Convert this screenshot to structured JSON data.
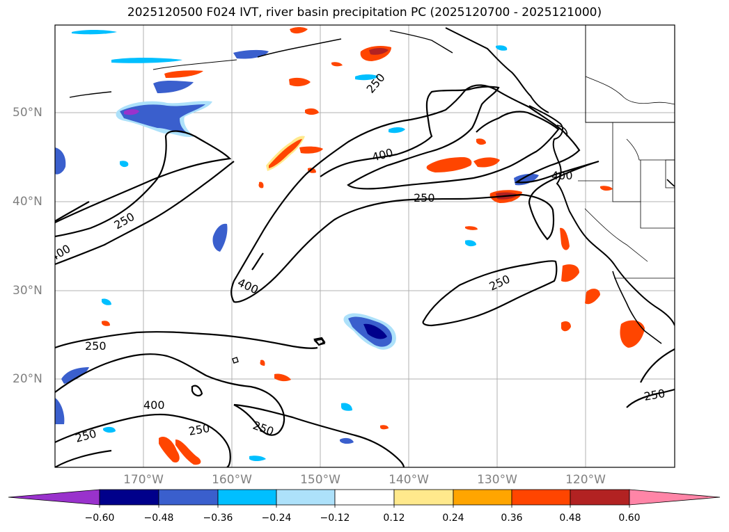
{
  "title": "2025120500 F024 IVT, river basin precipitation PC (2025120700 - 2025121000)",
  "latitude_labels": [
    "50°N",
    "40°N",
    "30°N",
    "20°N"
  ],
  "longitude_labels": [
    "170°W",
    "160°W",
    "150°W",
    "140°W",
    "130°W",
    "120°W"
  ],
  "colorbar": {
    "ticks": [
      "−0.60",
      "−0.48",
      "−0.36",
      "−0.24",
      "−0.12",
      "0.12",
      "0.24",
      "0.36",
      "0.48",
      "0.60"
    ],
    "colors": [
      "#9932CC",
      "#00008B",
      "#3A5FCD",
      "#00BFFF",
      "#ADE1FA",
      "#FFFFFF",
      "#FFE98C",
      "#FFA500",
      "#FF4500",
      "#B22222",
      "#FF85A7"
    ]
  },
  "contour_labels": [
    "250",
    "400",
    "400",
    "250",
    "250",
    "400",
    "400",
    "250",
    "250",
    "400",
    "250",
    "250",
    "250",
    "250"
  ]
}
